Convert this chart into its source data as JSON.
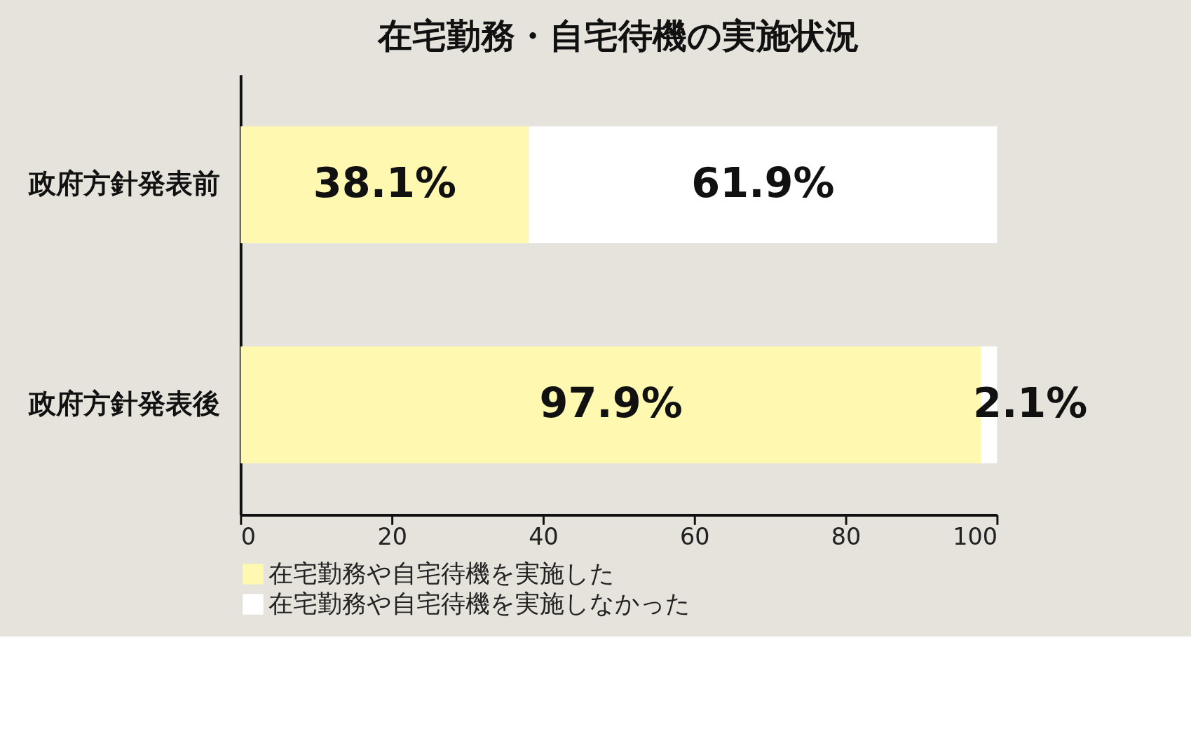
{
  "chart_data": {
    "type": "bar",
    "orientation": "horizontal",
    "stacked": true,
    "title": "在宅勤務・自宅待機の実施状況",
    "categories": [
      "政府方針発表前",
      "政府方針発表後"
    ],
    "series": [
      {
        "name": "在宅勤務や自宅待機を実施した",
        "color": "#fff8b0",
        "values": [
          38.1,
          97.9
        ],
        "value_labels": [
          "38.1%",
          "97.9%"
        ]
      },
      {
        "name": "在宅勤務や自宅待機を実施しなかった",
        "color": "#ffffff",
        "values": [
          61.9,
          2.1
        ],
        "value_labels": [
          "61.9%",
          "2.1%"
        ]
      }
    ],
    "xlim": [
      0,
      100
    ],
    "xticks": [
      0,
      20,
      40,
      60,
      80,
      100
    ],
    "grid": false,
    "legend": "bottom"
  }
}
